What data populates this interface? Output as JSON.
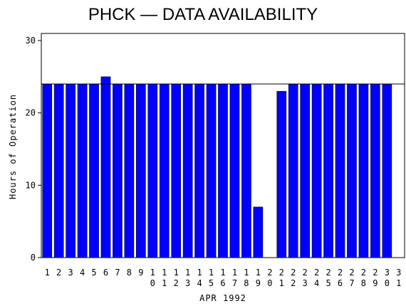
{
  "chart_data": {
    "type": "bar",
    "title": "PHCK — DATA AVAILABILITY",
    "x_label": "APR 1992",
    "y_label": "Hours of Operation",
    "categories": [
      "1",
      "2",
      "3",
      "4",
      "5",
      "6",
      "7",
      "8",
      "9",
      "10",
      "11",
      "12",
      "13",
      "14",
      "15",
      "16",
      "17",
      "18",
      "19",
      "20",
      "21",
      "22",
      "23",
      "24",
      "25",
      "26",
      "27",
      "28",
      "29",
      "30",
      "31"
    ],
    "values": [
      24,
      24,
      24,
      24,
      24,
      25,
      24,
      24,
      24,
      24,
      24,
      24,
      24,
      24,
      24,
      24,
      24,
      24,
      7,
      0,
      23,
      24,
      24,
      24,
      24,
      24,
      24,
      24,
      24,
      24,
      null
    ],
    "color": "#0000ff",
    "ylim": [
      0,
      30
    ],
    "yticks": [
      0,
      10,
      20,
      30
    ],
    "reference_line": 24
  }
}
